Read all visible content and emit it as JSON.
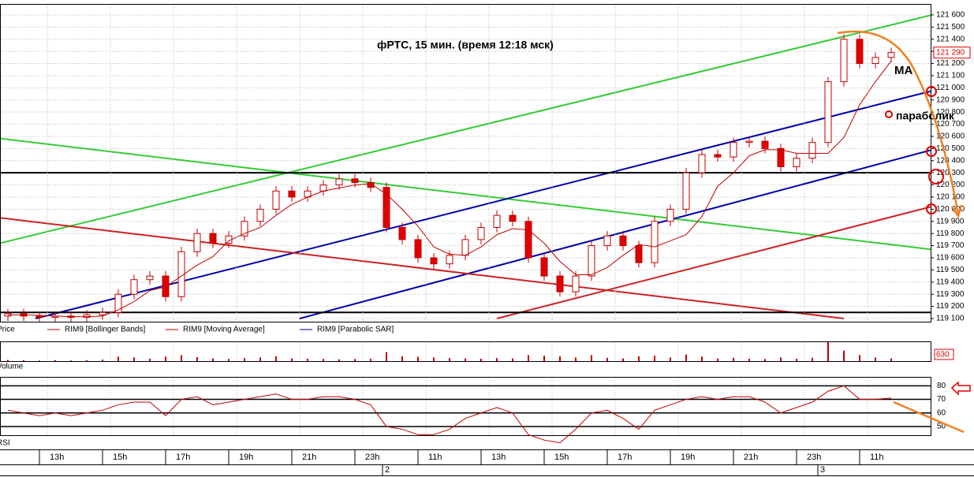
{
  "chart_data": {
    "type": "candlestick",
    "title": "фРТС,  15 мин.  (время 12:18 мск)",
    "annotations": [
      "MA",
      "параболик"
    ],
    "legend": [
      "Price",
      "RIM9 [Bollinger Bands]",
      "RIM9 [Moving Average]",
      "RIM9 [Parabolic SAR]"
    ],
    "open": [
      119120,
      119140,
      119120,
      119110,
      119120,
      119110,
      119130,
      119150,
      119300,
      119420,
      119450,
      119280,
      119650,
      119800,
      119720,
      119780,
      119900,
      120000,
      120150,
      120100,
      120150,
      120200,
      120250,
      120220,
      120180,
      119850,
      119750,
      119600,
      119550,
      119620,
      119750,
      119850,
      119950,
      119900,
      119600,
      119450,
      119320,
      119450,
      119700,
      119780,
      119700,
      119560,
      119900,
      120000,
      120300,
      120450,
      120430,
      120550,
      120560,
      120500,
      120350,
      120420,
      120550,
      121050,
      121400,
      121200,
      121250
    ],
    "high": [
      119180,
      119180,
      119160,
      119160,
      119160,
      119170,
      119190,
      119340,
      119460,
      119490,
      119490,
      119690,
      119840,
      119840,
      119820,
      119940,
      120040,
      120190,
      120190,
      120190,
      120240,
      120290,
      120290,
      120260,
      120220,
      119890,
      119790,
      119640,
      119660,
      119790,
      119890,
      119990,
      119990,
      119940,
      119640,
      119490,
      119490,
      119740,
      119820,
      119820,
      119740,
      119940,
      120040,
      120340,
      120490,
      120490,
      120590,
      120600,
      120600,
      120540,
      120460,
      120590,
      121090,
      121440,
      121440,
      121290,
      121330
    ],
    "low": [
      119080,
      119080,
      119070,
      119070,
      119070,
      119070,
      119090,
      119110,
      119260,
      119380,
      119240,
      119240,
      119610,
      119680,
      119680,
      119740,
      119860,
      119960,
      120060,
      120060,
      120110,
      120160,
      120180,
      120140,
      119810,
      119710,
      119560,
      119510,
      119510,
      119580,
      119710,
      119810,
      119860,
      119560,
      119410,
      119280,
      119280,
      119410,
      119660,
      119660,
      119520,
      119520,
      119860,
      119960,
      120260,
      120390,
      120390,
      120510,
      120460,
      120310,
      120310,
      120380,
      120510,
      121010,
      121160,
      121160,
      121210
    ],
    "close": [
      119140,
      119120,
      119110,
      119120,
      119110,
      119130,
      119150,
      119300,
      119420,
      119450,
      119280,
      119650,
      119800,
      119720,
      119780,
      119900,
      120000,
      120150,
      120100,
      120150,
      120200,
      120250,
      120220,
      120180,
      119850,
      119750,
      119600,
      119550,
      119620,
      119750,
      119850,
      119950,
      119900,
      119600,
      119450,
      119320,
      119450,
      119700,
      119780,
      119700,
      119560,
      119900,
      120000,
      120300,
      120450,
      120430,
      120550,
      120560,
      120500,
      120350,
      120420,
      120550,
      121050,
      121400,
      121200,
      121250,
      121290
    ],
    "ma": {
      "name": "RIM9 [Moving Average]",
      "color": "#c00000",
      "values": [
        119130,
        119130,
        119125,
        119120,
        119115,
        119115,
        119120,
        119170,
        119240,
        119330,
        119360,
        119450,
        119540,
        119610,
        119740,
        119800,
        119850,
        119950,
        120040,
        120100,
        120150,
        120175,
        120200,
        120210,
        120125,
        120000,
        119860,
        119690,
        119630,
        119620,
        119690,
        119790,
        119840,
        119830,
        119720,
        119570,
        119460,
        119460,
        119520,
        119620,
        119710,
        119690,
        119740,
        119790,
        119940,
        120190,
        120300,
        120440,
        120490,
        120490,
        120460,
        120460,
        120460,
        120590,
        120860,
        121050,
        121220
      ]
    },
    "up_color": "#ffffff",
    "down_color": "#e00000",
    "candle_stroke": "#c00000",
    "ylim": [
      119074,
      121684
    ],
    "yticks": [
      {
        "value": 119100,
        "label": "119 100"
      },
      {
        "value": 119200,
        "label": "119 200"
      },
      {
        "value": 119300,
        "label": "119 300"
      },
      {
        "value": 119400,
        "label": "119 400"
      },
      {
        "value": 119500,
        "label": "119 500"
      },
      {
        "value": 119600,
        "label": "119 600"
      },
      {
        "value": 119700,
        "label": "119 700"
      },
      {
        "value": 119800,
        "label": "119 800"
      },
      {
        "value": 119900,
        "label": "119 900"
      },
      {
        "value": 120000,
        "label": "120 000"
      },
      {
        "value": 120100,
        "label": "120 100"
      },
      {
        "value": 120200,
        "label": "120 200"
      },
      {
        "value": 120300,
        "label": "120 300"
      },
      {
        "value": 120400,
        "label": "120 400"
      },
      {
        "value": 120500,
        "label": "120 500"
      },
      {
        "value": 120600,
        "label": "120 600"
      },
      {
        "value": 120700,
        "label": "120 700"
      },
      {
        "value": 120800,
        "label": "120 800"
      },
      {
        "value": 120900,
        "label": "120 900"
      },
      {
        "value": 121000,
        "label": "121 000"
      },
      {
        "value": 121100,
        "label": "121 100"
      },
      {
        "value": 121200,
        "label": "121 200"
      },
      {
        "value": 121300,
        "label": "121 300"
      },
      {
        "value": 121400,
        "label": "121 400"
      },
      {
        "value": 121500,
        "label": "121 500"
      },
      {
        "value": 121600,
        "label": "121 600"
      }
    ],
    "last_price": {
      "value": 121290,
      "label": "121 290"
    },
    "grid": true,
    "trendlines": [
      {
        "color": "#33cc33",
        "x": [
          -0.5,
          58.5
        ],
        "y": [
          119720,
          121597
        ]
      },
      {
        "color": "#33cc33",
        "x": [
          -0.5,
          58.5
        ],
        "y": [
          120583,
          119670
        ]
      },
      {
        "color": "#0000aa",
        "x": [
          1.75,
          58.5
        ],
        "y": [
          119100,
          120972
        ]
      },
      {
        "color": "#0000aa",
        "x": [
          18.5,
          58.5
        ],
        "y": [
          119100,
          120486
        ]
      },
      {
        "color": "#cc2222",
        "x": [
          31,
          58.5
        ],
        "y": [
          119100,
          120020
        ]
      },
      {
        "color": "#cc2222",
        "x": [
          -0.5,
          53
        ],
        "y": [
          119929,
          119100
        ]
      },
      {
        "color": "#000000",
        "x": [
          -0.5,
          58.5
        ],
        "y": [
          120300,
          120300
        ]
      },
      {
        "color": "#000000",
        "x": [
          -0.5,
          58.5
        ],
        "y": [
          119150,
          119150
        ]
      }
    ],
    "volume": {
      "name": "Volume",
      "color": "#c00000",
      "values": [
        40,
        30,
        20,
        30,
        20,
        30,
        50,
        150,
        120,
        80,
        150,
        200,
        130,
        90,
        70,
        100,
        120,
        160,
        90,
        80,
        70,
        60,
        70,
        80,
        300,
        160,
        140,
        120,
        100,
        90,
        80,
        100,
        90,
        200,
        180,
        160,
        120,
        200,
        110,
        90,
        160,
        180,
        120,
        220,
        150,
        90,
        110,
        80,
        70,
        120,
        80,
        110,
        630,
        350,
        200,
        120,
        90
      ],
      "ylim": [
        0,
        630
      ],
      "yticks": [
        630
      ]
    },
    "rsi": {
      "name": "RSI",
      "color": "#c00000",
      "values": [
        62,
        60,
        58,
        60,
        58,
        60,
        62,
        66,
        68,
        68,
        58,
        70,
        72,
        66,
        68,
        70,
        72,
        74,
        70,
        70,
        72,
        72,
        70,
        66,
        50,
        48,
        44,
        44,
        48,
        56,
        60,
        64,
        60,
        44,
        40,
        38,
        48,
        60,
        62,
        56,
        48,
        62,
        66,
        70,
        72,
        70,
        72,
        72,
        68,
        60,
        64,
        68,
        76,
        80,
        70,
        70,
        71
      ],
      "ylim": [
        43.6,
        86
      ],
      "yticks": [
        80,
        70,
        60,
        50
      ]
    },
    "xticks": [
      {
        "value": 2.5,
        "label": "13h"
      },
      {
        "value": 6.5,
        "label": "15h"
      },
      {
        "value": 10.5,
        "label": "17h"
      },
      {
        "value": 14.5,
        "label": "19h"
      },
      {
        "value": 18.5,
        "label": "21h"
      },
      {
        "value": 22.5,
        "label": "23h"
      },
      {
        "value": 26.5,
        "label": "11h"
      },
      {
        "value": 30.5,
        "label": "13h"
      },
      {
        "value": 34.5,
        "label": "15h"
      },
      {
        "value": 38.5,
        "label": "17h"
      },
      {
        "value": 42.5,
        "label": "19h"
      },
      {
        "value": 46.5,
        "label": "21h"
      },
      {
        "value": 50.5,
        "label": "23h"
      },
      {
        "value": 54.5,
        "label": "11h"
      }
    ],
    "day_ticks": [
      {
        "value": 23.75,
        "label": "2"
      },
      {
        "value": 51.35,
        "label": "3"
      }
    ]
  }
}
